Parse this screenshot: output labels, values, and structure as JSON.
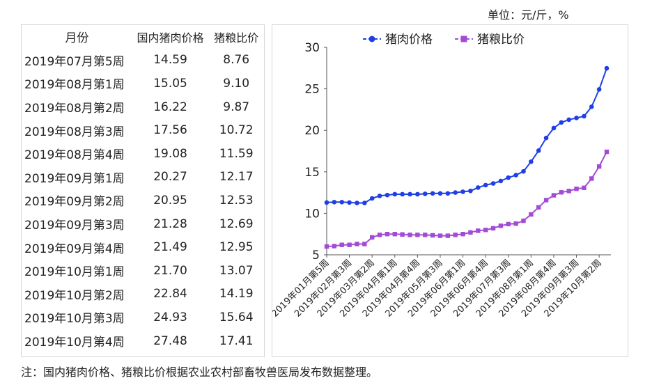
{
  "unit_label": "单位：元/斤，%",
  "note": "注：国内猪肉价格、猪粮比价根据农业农村部畜牧兽医局发布数据整理。",
  "table": {
    "headers": [
      "月份",
      "国内猪肉价格",
      "猪粮比价"
    ],
    "rows": [
      [
        "2019年07月第5周",
        "14.59",
        "8.76"
      ],
      [
        "2019年08月第1周",
        "15.05",
        "9.10"
      ],
      [
        "2019年08月第2周",
        "16.22",
        "9.87"
      ],
      [
        "2019年08月第3周",
        "17.56",
        "10.72"
      ],
      [
        "2019年08月第4周",
        "19.08",
        "11.59"
      ],
      [
        "2019年09月第1周",
        "20.27",
        "12.17"
      ],
      [
        "2019年09月第2周",
        "20.95",
        "12.53"
      ],
      [
        "2019年09月第3周",
        "21.28",
        "12.69"
      ],
      [
        "2019年09月第4周",
        "21.49",
        "12.95"
      ],
      [
        "2019年10月第1周",
        "21.70",
        "13.07"
      ],
      [
        "2019年10月第2周",
        "22.84",
        "14.19"
      ],
      [
        "2019年10月第3周",
        "24.93",
        "15.64"
      ],
      [
        "2019年10月第4周",
        "27.48",
        "17.41"
      ]
    ]
  },
  "chart_data": {
    "type": "line",
    "ylim": [
      5,
      30
    ],
    "yticks": [
      5,
      10,
      15,
      20,
      25,
      30
    ],
    "legend_position": "top",
    "x_tick_labels": [
      "2019年01月第5周",
      "2019年02月第3周",
      "2019年03月第2周",
      "2019年04月第1周",
      "2019年04月第4周",
      "2019年05月第3周",
      "2019年06月第1周",
      "2019年06月第4周",
      "2019年07月第3周",
      "2019年08月第1周",
      "2019年08月第4周",
      "2019年09月第3周",
      "2019年10月第2周"
    ],
    "series": [
      {
        "name": "猪肉价格",
        "color": "#1f3fe6",
        "marker": "circle",
        "values": [
          11.3,
          11.35,
          11.35,
          11.3,
          11.25,
          11.25,
          11.8,
          12.1,
          12.2,
          12.3,
          12.3,
          12.3,
          12.3,
          12.35,
          12.4,
          12.4,
          12.4,
          12.5,
          12.6,
          12.7,
          13.1,
          13.4,
          13.6,
          13.9,
          14.3,
          14.6,
          15.05,
          16.22,
          17.56,
          19.08,
          20.27,
          20.95,
          21.28,
          21.49,
          21.7,
          22.84,
          24.93,
          27.48
        ]
      },
      {
        "name": "猪粮比价",
        "color": "#a24bd6",
        "marker": "square",
        "values": [
          6.0,
          6.05,
          6.2,
          6.2,
          6.3,
          6.3,
          7.1,
          7.4,
          7.5,
          7.5,
          7.45,
          7.4,
          7.4,
          7.4,
          7.35,
          7.3,
          7.3,
          7.4,
          7.5,
          7.7,
          7.9,
          8.0,
          8.2,
          8.5,
          8.7,
          8.76,
          9.1,
          9.87,
          10.72,
          11.59,
          12.17,
          12.53,
          12.69,
          12.95,
          13.07,
          14.19,
          15.64,
          17.41
        ]
      }
    ]
  }
}
